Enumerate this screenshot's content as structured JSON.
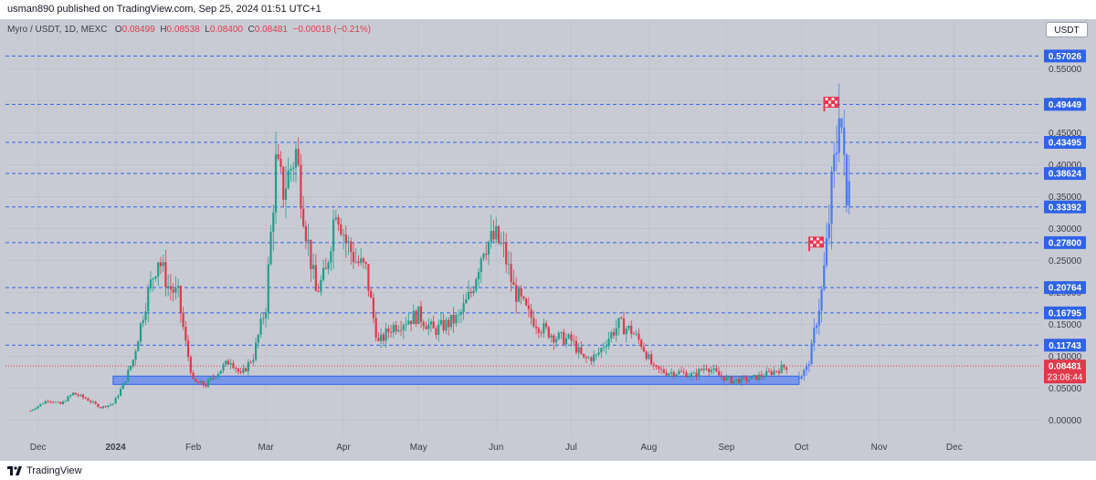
{
  "header": {
    "publisher_line": "usman890 published on TradingView.com, Sep 25, 2024 01:51 UTC+1"
  },
  "legend": {
    "symbol": "Myro / USDT, 1D, MEXC",
    "o_label": "O",
    "o_value": "0.08499",
    "h_label": "H",
    "h_value": "0.08538",
    "l_label": "L",
    "l_value": "0.08400",
    "c_label": "C",
    "c_value": "0.08481",
    "change": "−0.00018 (−0.21%)"
  },
  "currency_button": "USDT",
  "footer": {
    "logo_text": "TradingView"
  },
  "colors": {
    "up": "#1fa08a",
    "down": "#e0394b",
    "projection": "#4a7bef",
    "level_line": "#2f63e8",
    "zone_fill": "#6b8dee",
    "flag": "#ef3550"
  },
  "chart_data": {
    "type": "candlestick",
    "title": "",
    "ylabel": "",
    "xlabel": "",
    "ylim": [
      -0.025,
      0.595
    ],
    "y_ticks": [
      "0.00000",
      "0.05000",
      "0.10000",
      "0.15000",
      "0.20000",
      "0.25000",
      "0.30000",
      "0.35000",
      "0.40000",
      "0.45000",
      "0.50000",
      "0.55000"
    ],
    "x_ticks": [
      "Dec",
      "2024",
      "Feb",
      "Mar",
      "Apr",
      "May",
      "Jun",
      "Jul",
      "Aug",
      "Sep",
      "Oct",
      "Nov",
      "Dec"
    ],
    "x_tick_dates": [
      "2023-12-01",
      "2024-01-01",
      "2024-02-01",
      "2024-03-01",
      "2024-04-01",
      "2024-05-01",
      "2024-06-01",
      "2024-07-01",
      "2024-08-01",
      "2024-09-01",
      "2024-10-01",
      "2024-11-01",
      "2024-12-01"
    ],
    "xlim": [
      "2023-11-18",
      "2025-01-04"
    ],
    "horizontal_levels": [
      "0.57026",
      "0.49449",
      "0.43495",
      "0.38624",
      "0.33392",
      "0.27800",
      "0.20764",
      "0.16795",
      "0.11743"
    ],
    "last_price": "0.08481",
    "countdown": "23:08:44",
    "support_zone": {
      "from": "2023-12-31",
      "to": "2024-09-30",
      "low": 0.056,
      "high": 0.069
    },
    "target_flags": [
      {
        "date": "2024-10-07",
        "price": 0.276
      },
      {
        "date": "2024-10-13",
        "price": 0.495
      }
    ],
    "price_path": [
      [
        "2023-11-28",
        0.015
      ],
      [
        "2023-12-05",
        0.032
      ],
      [
        "2023-12-10",
        0.025
      ],
      [
        "2023-12-15",
        0.042
      ],
      [
        "2023-12-20",
        0.034
      ],
      [
        "2023-12-26",
        0.02
      ],
      [
        "2023-12-31",
        0.026
      ],
      [
        "2024-01-04",
        0.055
      ],
      [
        "2024-01-08",
        0.095
      ],
      [
        "2024-01-13",
        0.185
      ],
      [
        "2024-01-18",
        0.255
      ],
      [
        "2024-01-22",
        0.21
      ],
      [
        "2024-01-26",
        0.195
      ],
      [
        "2024-01-29",
        0.12
      ],
      [
        "2024-02-01",
        0.06
      ],
      [
        "2024-02-06",
        0.055
      ],
      [
        "2024-02-12",
        0.08
      ],
      [
        "2024-02-16",
        0.095
      ],
      [
        "2024-02-20",
        0.07
      ],
      [
        "2024-02-25",
        0.1
      ],
      [
        "2024-03-01",
        0.18
      ],
      [
        "2024-03-05",
        0.4
      ],
      [
        "2024-03-08",
        0.36
      ],
      [
        "2024-03-13",
        0.42
      ],
      [
        "2024-03-17",
        0.3
      ],
      [
        "2024-03-21",
        0.2
      ],
      [
        "2024-03-25",
        0.23
      ],
      [
        "2024-03-29",
        0.34
      ],
      [
        "2024-04-02",
        0.28
      ],
      [
        "2024-04-06",
        0.25
      ],
      [
        "2024-04-10",
        0.235
      ],
      [
        "2024-04-13",
        0.16
      ],
      [
        "2024-04-15",
        0.12
      ],
      [
        "2024-04-20",
        0.145
      ],
      [
        "2024-04-25",
        0.155
      ],
      [
        "2024-05-01",
        0.165
      ],
      [
        "2024-05-07",
        0.14
      ],
      [
        "2024-05-12",
        0.15
      ],
      [
        "2024-05-17",
        0.16
      ],
      [
        "2024-05-22",
        0.2
      ],
      [
        "2024-05-27",
        0.275
      ],
      [
        "2024-06-01",
        0.285
      ],
      [
        "2024-06-04",
        0.265
      ],
      [
        "2024-06-08",
        0.205
      ],
      [
        "2024-06-14",
        0.165
      ],
      [
        "2024-06-19",
        0.145
      ],
      [
        "2024-06-25",
        0.13
      ],
      [
        "2024-07-01",
        0.125
      ],
      [
        "2024-07-06",
        0.095
      ],
      [
        "2024-07-11",
        0.1
      ],
      [
        "2024-07-16",
        0.13
      ],
      [
        "2024-07-20",
        0.15
      ],
      [
        "2024-07-25",
        0.14
      ],
      [
        "2024-07-29",
        0.12
      ],
      [
        "2024-08-03",
        0.08
      ],
      [
        "2024-08-08",
        0.075
      ],
      [
        "2024-08-13",
        0.075
      ],
      [
        "2024-08-19",
        0.07
      ],
      [
        "2024-08-24",
        0.085
      ],
      [
        "2024-08-29",
        0.07
      ],
      [
        "2024-09-03",
        0.062
      ],
      [
        "2024-09-08",
        0.063
      ],
      [
        "2024-09-12",
        0.066
      ],
      [
        "2024-09-17",
        0.072
      ],
      [
        "2024-09-22",
        0.08
      ],
      [
        "2024-09-25",
        0.085
      ]
    ],
    "projection_path": [
      [
        "2024-09-30",
        0.068
      ],
      [
        "2024-10-03",
        0.08
      ],
      [
        "2024-10-05",
        0.11
      ],
      [
        "2024-10-07",
        0.16
      ],
      [
        "2024-10-09",
        0.2
      ],
      [
        "2024-10-11",
        0.27
      ],
      [
        "2024-10-13",
        0.36
      ],
      [
        "2024-10-15",
        0.43
      ],
      [
        "2024-10-16",
        0.51
      ],
      [
        "2024-10-17",
        0.46
      ],
      [
        "2024-10-18",
        0.39
      ],
      [
        "2024-10-19",
        0.33
      ],
      [
        "2024-10-20",
        0.4
      ]
    ]
  }
}
